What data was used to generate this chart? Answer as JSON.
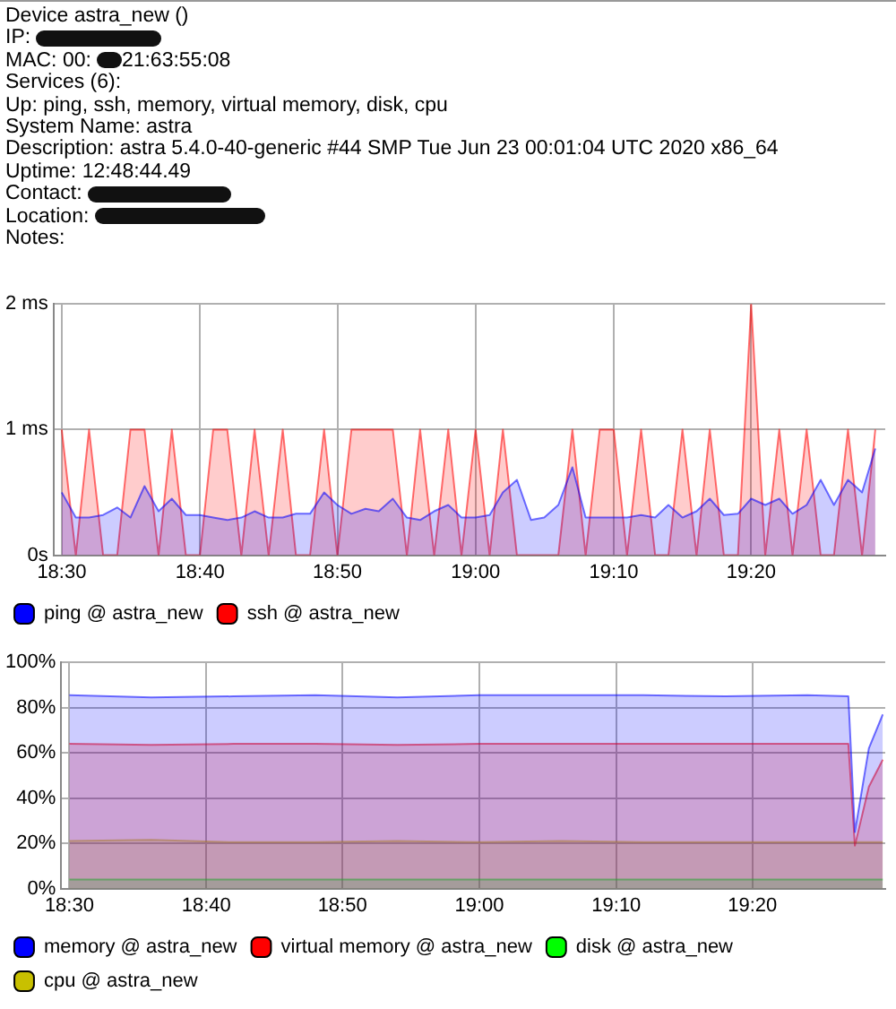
{
  "chart_data": [
    {
      "type": "other",
      "annotations": [
        "Device astra_new ()",
        "IP:",
        "MAC: 00:",
        "21:63:55:08",
        "Services (6):",
        "Up: ping, ssh, memory, virtual memory, disk, cpu",
        "System Name: astra",
        "Description: astra 5.4.0-40-generic #44 SMP Tue Jun 23 00:01:04 UTC 2020 x86_64",
        "Uptime: 12:48:44.49",
        "Contact:",
        "Location:",
        "Notes:"
      ]
    },
    {
      "type": "area",
      "x": [
        18.5,
        18.517,
        18.533,
        18.55,
        18.567,
        18.583,
        18.6,
        18.617,
        18.633,
        18.65,
        18.667,
        18.683,
        18.7,
        18.717,
        18.733,
        18.75,
        18.767,
        18.783,
        18.8,
        18.817,
        18.833,
        18.85,
        18.867,
        18.883,
        18.9,
        18.917,
        18.933,
        18.95,
        18.967,
        18.983,
        19,
        19.017,
        19.033,
        19.05,
        19.067,
        19.083,
        19.1,
        19.117,
        19.133,
        19.15,
        19.167,
        19.183,
        19.2,
        19.217,
        19.233,
        19.25,
        19.267,
        19.283,
        19.3,
        19.317,
        19.333,
        19.35,
        19.367,
        19.383,
        19.4,
        19.417,
        19.433,
        19.45,
        19.467,
        19.483
      ],
      "series": [
        {
          "name": "ping @ astra_new",
          "color": "#0000ff",
          "values": [
            0.5,
            0.3,
            0.3,
            0.32,
            0.38,
            0.3,
            0.55,
            0.35,
            0.45,
            0.32,
            0.32,
            0.3,
            0.28,
            0.3,
            0.35,
            0.3,
            0.3,
            0.33,
            0.33,
            0.5,
            0.4,
            0.33,
            0.37,
            0.35,
            0.45,
            0.3,
            0.28,
            0.35,
            0.4,
            0.3,
            0.3,
            0.32,
            0.5,
            0.6,
            0.28,
            0.3,
            0.4,
            0.7,
            0.3,
            0.3,
            0.3,
            0.3,
            0.32,
            0.3,
            0.4,
            0.3,
            0.35,
            0.45,
            0.32,
            0.33,
            0.45,
            0.4,
            0.45,
            0.33,
            0.4,
            0.6,
            0.4,
            0.6,
            0.5,
            0.85
          ]
        },
        {
          "name": "ssh @ astra_new",
          "color": "#ff0000",
          "values": [
            1,
            0,
            1,
            0,
            0,
            1,
            1,
            0,
            1,
            0,
            0,
            1,
            1,
            0,
            1,
            0,
            1,
            0,
            0,
            1,
            0,
            1,
            1,
            1,
            1,
            0,
            1,
            0,
            1,
            0,
            1,
            0,
            1,
            0,
            0,
            0,
            0,
            1,
            0,
            1,
            1,
            0,
            1,
            0,
            0,
            1,
            0,
            1,
            0,
            0,
            2,
            0,
            1,
            0,
            1,
            0,
            0,
            1,
            0,
            1
          ]
        }
      ],
      "xlim": [
        18.49,
        19.495
      ],
      "xticks": [
        {
          "value": 18.5,
          "label": "18:30"
        },
        {
          "value": 18.667,
          "label": "18:40"
        },
        {
          "value": 18.833,
          "label": "18:50"
        },
        {
          "value": 19,
          "label": "19:00"
        },
        {
          "value": 19.167,
          "label": "19:10"
        },
        {
          "value": 19.333,
          "label": "19:20"
        }
      ],
      "ylim": [
        0,
        2
      ],
      "yticks": [
        {
          "value": 0,
          "label": "0s"
        },
        {
          "value": 1,
          "label": "1 ms"
        },
        {
          "value": 2,
          "label": "2 ms"
        }
      ],
      "grid": true,
      "legend": "bottom"
    },
    {
      "type": "area",
      "x": [
        18.5,
        18.6,
        18.7,
        18.8,
        18.9,
        19,
        19.1,
        19.2,
        19.3,
        19.4,
        19.45,
        19.458,
        19.475,
        19.492
      ],
      "series": [
        {
          "name": "memory @ astra_new",
          "color": "#0000ff",
          "values": [
            85.5,
            84.5,
            85,
            85.5,
            84.5,
            85.5,
            85.5,
            85.5,
            85,
            85.5,
            85,
            25,
            62,
            77
          ]
        },
        {
          "name": "virtual memory @ astra_new",
          "color": "#ff0000",
          "values": [
            64,
            63.5,
            64,
            64,
            63.5,
            64,
            64,
            64,
            64,
            64,
            64,
            19,
            45,
            57
          ]
        },
        {
          "name": "disk @ astra_new",
          "color": "#00ff00",
          "values": [
            4,
            4,
            4,
            4,
            4,
            4,
            4,
            4,
            4,
            4,
            4,
            4,
            4,
            4
          ]
        },
        {
          "name": "cpu @ astra_new",
          "color": "#c8c000",
          "values": [
            21,
            21.5,
            20.5,
            20.5,
            21,
            20.5,
            21,
            20.5,
            20.5,
            20.5,
            20.5,
            20.5,
            20.5,
            20.5
          ]
        }
      ],
      "xlim": [
        18.49,
        19.495
      ],
      "xticks": [
        {
          "value": 18.5,
          "label": "18:30"
        },
        {
          "value": 18.667,
          "label": "18:40"
        },
        {
          "value": 18.833,
          "label": "18:50"
        },
        {
          "value": 19,
          "label": "19:00"
        },
        {
          "value": 19.167,
          "label": "19:10"
        },
        {
          "value": 19.333,
          "label": "19:20"
        }
      ],
      "ylim": [
        0,
        100
      ],
      "yticks": [
        {
          "value": 0,
          "label": "0%"
        },
        {
          "value": 20,
          "label": "20%"
        },
        {
          "value": 40,
          "label": "40%"
        },
        {
          "value": 60,
          "label": "60%"
        },
        {
          "value": 80,
          "label": "80%"
        },
        {
          "value": 100,
          "label": "100%"
        }
      ],
      "grid": true,
      "legend": "bottom"
    }
  ]
}
